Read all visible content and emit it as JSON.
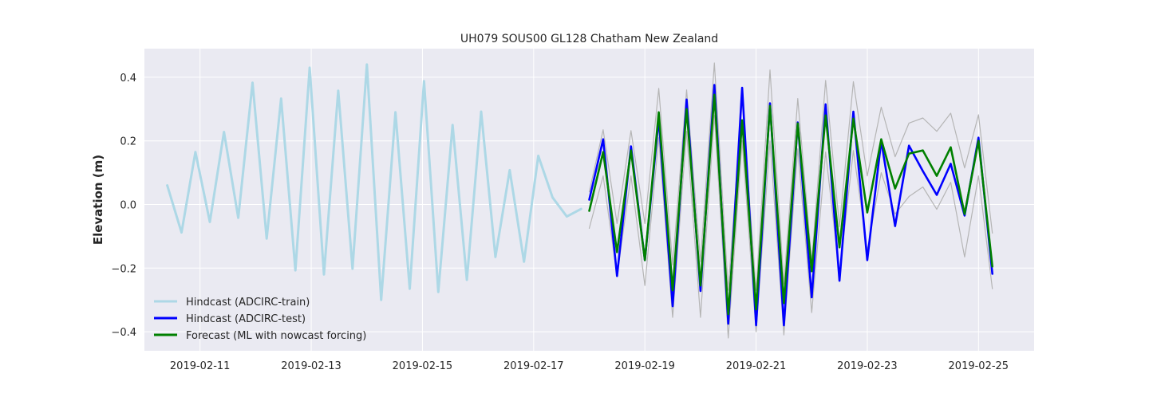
{
  "chart_data": {
    "type": "line",
    "title": "UH079 SOUS00 GL128 Chatham New Zealand",
    "xlabel": "",
    "ylabel": "Elevation (m)",
    "x_unit": "date",
    "xlim": [
      "2019-02-10T00:00",
      "2019-02-26T00:00"
    ],
    "ylim": [
      -0.46,
      0.49
    ],
    "xticks": [
      "2019-02-11",
      "2019-02-13",
      "2019-02-15",
      "2019-02-17",
      "2019-02-19",
      "2019-02-21",
      "2019-02-23",
      "2019-02-25"
    ],
    "yticks": [
      -0.4,
      -0.2,
      0.0,
      0.2,
      0.4
    ],
    "ytick_labels": [
      "−0.4",
      "−0.2",
      "0.0",
      "0.2",
      "0.4"
    ],
    "grid": true,
    "legend_position": "lower-left",
    "colors": {
      "background": "#eaeaf2",
      "grid": "#ffffff",
      "train": "#add8e6",
      "test": "#0000ff",
      "forecast": "#008000",
      "envelope": "#b5b5b5"
    },
    "series": [
      {
        "name": "Hindcast (ADCIRC-train)",
        "color": "#add8e6",
        "x": [
          "2019-02-10T09:50",
          "2019-02-10T16:00",
          "2019-02-10T22:00",
          "2019-02-11T04:15",
          "2019-02-11T10:20",
          "2019-02-11T16:30",
          "2019-02-11T22:40",
          "2019-02-12T04:45",
          "2019-02-12T11:00",
          "2019-02-12T17:10",
          "2019-02-12T23:20",
          "2019-02-13T05:30",
          "2019-02-13T11:40",
          "2019-02-13T17:50",
          "2019-02-14T00:00",
          "2019-02-14T06:10",
          "2019-02-14T12:20",
          "2019-02-14T18:30",
          "2019-02-15T00:40",
          "2019-02-15T06:50",
          "2019-02-15T13:00",
          "2019-02-15T19:10",
          "2019-02-16T01:20",
          "2019-02-16T07:30",
          "2019-02-16T13:40",
          "2019-02-16T19:50",
          "2019-02-17T02:00",
          "2019-02-17T08:10",
          "2019-02-17T14:20",
          "2019-02-17T20:30"
        ],
        "y": [
          0.06,
          -0.088,
          0.165,
          -0.055,
          0.228,
          -0.042,
          0.383,
          -0.107,
          0.333,
          -0.207,
          0.43,
          -0.22,
          0.358,
          -0.202,
          0.44,
          -0.3,
          0.29,
          -0.265,
          0.388,
          -0.275,
          0.25,
          -0.237,
          0.292,
          -0.165,
          0.108,
          -0.18,
          0.153,
          0.022,
          -0.038,
          -0.014
        ]
      },
      {
        "name": "Hindcast (ADCIRC-test)",
        "color": "#0000ff",
        "x": [
          "2019-02-18T00:00",
          "2019-02-18T06:00",
          "2019-02-18T12:00",
          "2019-02-18T18:00",
          "2019-02-19T00:00",
          "2019-02-19T06:00",
          "2019-02-19T12:00",
          "2019-02-19T18:00",
          "2019-02-20T00:00",
          "2019-02-20T06:00",
          "2019-02-20T12:00",
          "2019-02-20T18:00",
          "2019-02-21T00:00",
          "2019-02-21T06:00",
          "2019-02-21T12:00",
          "2019-02-21T18:00",
          "2019-02-22T00:00",
          "2019-02-22T06:00",
          "2019-02-22T12:00",
          "2019-02-22T18:00",
          "2019-02-23T00:00",
          "2019-02-23T06:00",
          "2019-02-23T12:00",
          "2019-02-23T18:00",
          "2019-02-24T00:00",
          "2019-02-24T06:00",
          "2019-02-24T12:00",
          "2019-02-24T18:00",
          "2019-02-25T00:00",
          "2019-02-25T06:00"
        ],
        "y": [
          0.015,
          0.205,
          -0.225,
          0.183,
          -0.175,
          0.27,
          -0.32,
          0.33,
          -0.272,
          0.376,
          -0.375,
          0.367,
          -0.38,
          0.318,
          -0.38,
          0.258,
          -0.292,
          0.315,
          -0.24,
          0.292,
          -0.175,
          0.2,
          -0.068,
          0.185,
          0.105,
          0.03,
          0.128,
          -0.035,
          0.21,
          -0.218
        ]
      },
      {
        "name": "Forecast (ML with nowcast forcing)",
        "color": "#008000",
        "x": [
          "2019-02-18T00:00",
          "2019-02-18T06:00",
          "2019-02-18T12:00",
          "2019-02-18T18:00",
          "2019-02-19T00:00",
          "2019-02-19T06:00",
          "2019-02-19T12:00",
          "2019-02-19T18:00",
          "2019-02-20T00:00",
          "2019-02-20T06:00",
          "2019-02-20T12:00",
          "2019-02-20T18:00",
          "2019-02-21T00:00",
          "2019-02-21T06:00",
          "2019-02-21T12:00",
          "2019-02-21T18:00",
          "2019-02-22T00:00",
          "2019-02-22T06:00",
          "2019-02-22T12:00",
          "2019-02-22T18:00",
          "2019-02-23T00:00",
          "2019-02-23T06:00",
          "2019-02-23T12:00",
          "2019-02-23T18:00",
          "2019-02-24T00:00",
          "2019-02-24T06:00",
          "2019-02-24T12:00",
          "2019-02-24T18:00",
          "2019-02-25T00:00",
          "2019-02-25T06:00"
        ],
        "y": [
          -0.02,
          0.165,
          -0.15,
          0.17,
          -0.175,
          0.29,
          -0.27,
          0.3,
          -0.255,
          0.345,
          -0.345,
          0.265,
          -0.33,
          0.31,
          -0.31,
          0.255,
          -0.21,
          0.28,
          -0.135,
          0.27,
          -0.025,
          0.205,
          0.05,
          0.16,
          0.17,
          0.09,
          0.18,
          -0.03,
          0.2,
          -0.195
        ]
      },
      {
        "name": "",
        "color": "#b5b5b5",
        "x": [
          "2019-02-18T00:00",
          "2019-02-18T06:00",
          "2019-02-18T12:00",
          "2019-02-18T18:00",
          "2019-02-19T00:00",
          "2019-02-19T06:00",
          "2019-02-19T12:00",
          "2019-02-19T18:00",
          "2019-02-20T00:00",
          "2019-02-20T06:00",
          "2019-02-20T12:00",
          "2019-02-20T18:00",
          "2019-02-21T00:00",
          "2019-02-21T06:00",
          "2019-02-21T12:00",
          "2019-02-21T18:00",
          "2019-02-22T00:00",
          "2019-02-22T06:00",
          "2019-02-22T12:00",
          "2019-02-22T18:00",
          "2019-02-23T00:00",
          "2019-02-23T06:00",
          "2019-02-23T12:00",
          "2019-02-23T18:00",
          "2019-02-24T00:00",
          "2019-02-24T06:00",
          "2019-02-24T12:00",
          "2019-02-24T18:00",
          "2019-02-25T00:00",
          "2019-02-25T06:00"
        ],
        "y": [
          0.04,
          0.235,
          -0.06,
          0.232,
          -0.06,
          0.365,
          -0.19,
          0.36,
          -0.18,
          0.445,
          -0.27,
          0.33,
          -0.27,
          0.423,
          -0.25,
          0.333,
          -0.18,
          0.39,
          -0.07,
          0.386,
          0.09,
          0.306,
          0.15,
          0.256,
          0.272,
          0.23,
          0.287,
          0.115,
          0.282,
          -0.09
        ]
      },
      {
        "name": "",
        "color": "#b5b5b5",
        "x": [
          "2019-02-18T00:00",
          "2019-02-18T06:00",
          "2019-02-18T12:00",
          "2019-02-18T18:00",
          "2019-02-19T00:00",
          "2019-02-19T06:00",
          "2019-02-19T12:00",
          "2019-02-19T18:00",
          "2019-02-20T00:00",
          "2019-02-20T06:00",
          "2019-02-20T12:00",
          "2019-02-20T18:00",
          "2019-02-21T00:00",
          "2019-02-21T06:00",
          "2019-02-21T12:00",
          "2019-02-21T18:00",
          "2019-02-22T00:00",
          "2019-02-22T06:00",
          "2019-02-22T12:00",
          "2019-02-22T18:00",
          "2019-02-23T00:00",
          "2019-02-23T06:00",
          "2019-02-23T12:00",
          "2019-02-23T18:00",
          "2019-02-24T00:00",
          "2019-02-24T06:00",
          "2019-02-24T12:00",
          "2019-02-24T18:00",
          "2019-02-25T00:00",
          "2019-02-25T06:00"
        ],
        "y": [
          -0.075,
          0.09,
          -0.225,
          0.09,
          -0.255,
          0.21,
          -0.355,
          0.23,
          -0.355,
          0.28,
          -0.42,
          0.2,
          -0.4,
          0.2,
          -0.41,
          0.175,
          -0.34,
          0.165,
          -0.22,
          0.17,
          -0.145,
          0.1,
          -0.03,
          0.025,
          0.055,
          -0.015,
          0.07,
          -0.165,
          0.09,
          -0.265
        ]
      }
    ]
  }
}
